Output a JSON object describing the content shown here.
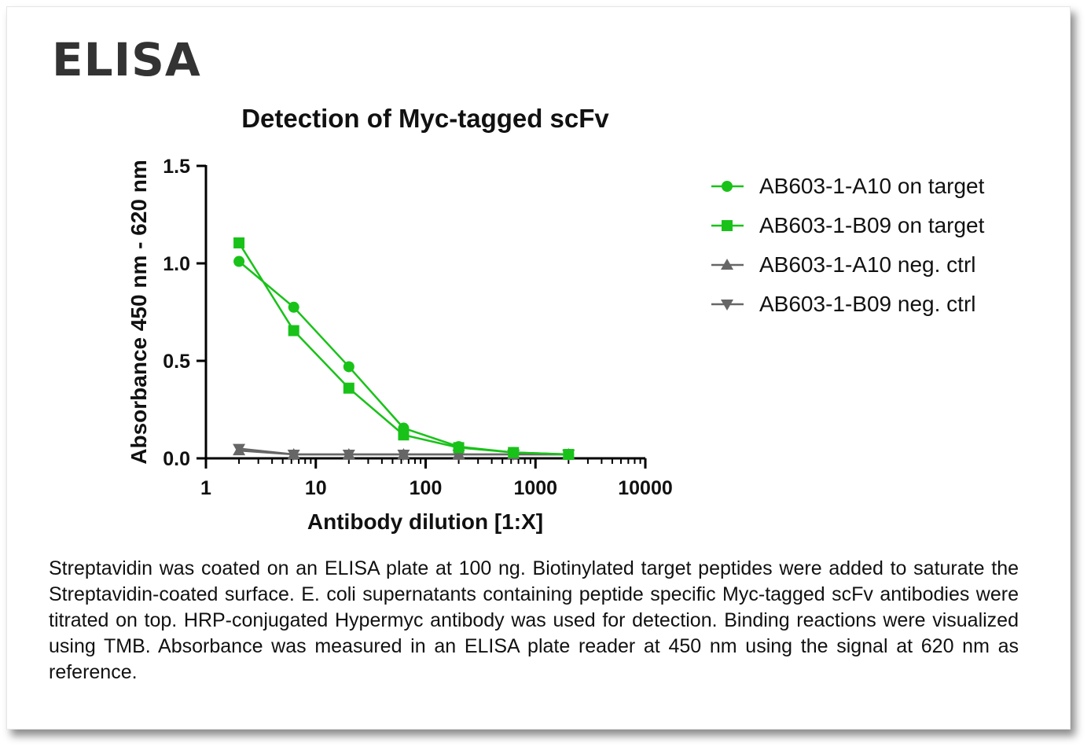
{
  "heading": "ELISA",
  "caption": "Streptavidin was coated on an ELISA plate at 100 ng. Biotinylated target peptides were added to saturate the Streptavidin-coated surface. E. coli supernatants containing peptide specific Myc-tagged scFv antibodies were titrated on top. HRP-conjugated Hypermyc antibody was used for detection. Binding reactions were visualized using TMB. Absorbance was measured in an ELISA plate reader at 450 nm using the signal at 620 nm as reference.",
  "chart_data": {
    "type": "line",
    "title": "Detection of Myc-tagged scFv",
    "xlabel": "Antibody dilution [1:X]",
    "ylabel": "Absorbance 450 nm - 620 nm",
    "xscale": "log",
    "xlim": [
      1,
      10000
    ],
    "ylim": [
      0,
      1.5
    ],
    "xticks": [
      1,
      10,
      100,
      1000,
      10000
    ],
    "xtick_labels": [
      "1",
      "10",
      "100",
      "1000",
      "10000"
    ],
    "yticks": [
      0,
      0.5,
      1.0,
      1.5
    ],
    "ytick_labels": [
      "0.0",
      "0.5",
      "1.0",
      "1.5"
    ],
    "grid": false,
    "legend_position": "right",
    "x": [
      2,
      6.3,
      20,
      63,
      200,
      630,
      2000
    ],
    "series": [
      {
        "name": "AB603-1-A10 on target",
        "marker": "circle",
        "color": "#19c219",
        "values": [
          1.01,
          0.775,
          0.47,
          0.155,
          0.06,
          0.03,
          0.02
        ]
      },
      {
        "name": "AB603-1-B09 on target",
        "marker": "square",
        "color": "#19c219",
        "values": [
          1.105,
          0.655,
          0.36,
          0.12,
          0.055,
          0.03,
          0.02
        ]
      },
      {
        "name": "AB603-1-A10 neg. ctrl",
        "marker": "triangle-up",
        "color": "#666666",
        "values": [
          0.04,
          0.02,
          0.02,
          0.02,
          0.02,
          0.02,
          0.02
        ]
      },
      {
        "name": "AB603-1-B09 neg. ctrl",
        "marker": "triangle-down",
        "color": "#666666",
        "values": [
          0.05,
          0.02,
          0.02,
          0.02,
          0.02,
          0.02,
          0.02
        ]
      }
    ]
  }
}
